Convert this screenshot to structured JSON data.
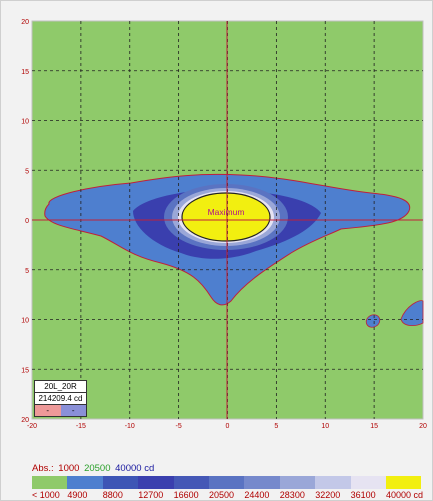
{
  "chart_data": {
    "type": "heatmap",
    "title": "",
    "x_ticks": [
      "-20",
      "-15",
      "-10",
      "-5",
      "0",
      "5",
      "10",
      "15",
      "20"
    ],
    "y_ticks": [
      "20",
      "15",
      "10",
      "5",
      "0",
      "5",
      "10",
      "15",
      "20"
    ],
    "xlim": [
      -20,
      20
    ],
    "ylim": [
      -20,
      20
    ],
    "grid": true,
    "annotation": "Maximum",
    "info_box": {
      "beam": "20L_20R",
      "peak": "214209.4 cd",
      "marker_left": "-",
      "marker_right": "-"
    },
    "abs_label": "Abs.:",
    "abs_levels": [
      {
        "value": "1000",
        "color": "#b00000"
      },
      {
        "value": "20500",
        "color": "#2aa02a"
      },
      {
        "value": "40000 cd",
        "color": "#1a1aa0"
      }
    ],
    "legend": {
      "colors": [
        "#8fca6a",
        "#4e7fcf",
        "#3d55b5",
        "#3a3fae",
        "#4558b6",
        "#5a73c2",
        "#7689cc",
        "#9aa7d8",
        "#c3c8e8",
        "#e6e3f2",
        "#f2ef10"
      ],
      "labels": [
        "< 1000",
        "4900",
        "8800",
        "12700",
        "16600",
        "20500",
        "24400",
        "28300",
        "32200",
        "36100",
        "40000 cd"
      ]
    }
  }
}
